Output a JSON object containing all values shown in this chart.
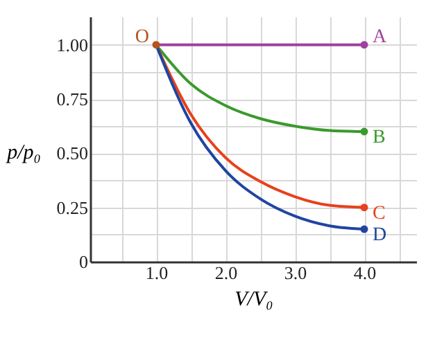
{
  "chart_data": {
    "type": "line",
    "xlabel": "V/V₀",
    "ylabel": "p/p₀",
    "xlim": [
      0.05,
      4.75
    ],
    "ylim": [
      0,
      1.13
    ],
    "xticks": [
      {
        "value": 0.5,
        "label": null
      },
      {
        "value": 1,
        "label": "1.0"
      },
      {
        "value": 1.5,
        "label": null
      },
      {
        "value": 2,
        "label": "2.0"
      },
      {
        "value": 2.5,
        "label": null
      },
      {
        "value": 3,
        "label": "3.0"
      },
      {
        "value": 3.5,
        "label": null
      },
      {
        "value": 4,
        "label": "4.0"
      },
      {
        "value": 4.5,
        "label": null
      }
    ],
    "yticks": [
      {
        "value": 0,
        "label": "0"
      },
      {
        "value": 0.125,
        "label": null
      },
      {
        "value": 0.25,
        "label": "0.25"
      },
      {
        "value": 0.375,
        "label": null
      },
      {
        "value": 0.5,
        "label": "0.50"
      },
      {
        "value": 0.625,
        "label": null
      },
      {
        "value": 0.75,
        "label": "0.75"
      },
      {
        "value": 0.875,
        "label": null
      },
      {
        "value": 1,
        "label": "1.00"
      }
    ],
    "grid": true,
    "legend": false,
    "line_style": "solid",
    "series": [
      {
        "name": "A",
        "color": "#a0409f",
        "x": [
          1,
          4
        ],
        "values": [
          1,
          1
        ]
      },
      {
        "name": "B",
        "color": "#3a9a2c",
        "x": [
          1,
          1.5,
          2,
          2.5,
          3,
          3.5,
          4
        ],
        "values": [
          1,
          0.82,
          0.72,
          0.66,
          0.625,
          0.605,
          0.6
        ]
      },
      {
        "name": "C",
        "color": "#e8401c",
        "x": [
          1,
          1.5,
          2,
          2.5,
          3,
          3.5,
          4
        ],
        "values": [
          1,
          0.68,
          0.48,
          0.37,
          0.3,
          0.26,
          0.25
        ]
      },
      {
        "name": "D",
        "color": "#1f45a0",
        "x": [
          1,
          1.5,
          2,
          2.5,
          3,
          3.5,
          4
        ],
        "values": [
          1,
          0.64,
          0.42,
          0.29,
          0.21,
          0.165,
          0.15
        ]
      },
      {
        "type": "scatter",
        "marker": "circle",
        "x": [
          4,
          4,
          4,
          4
        ],
        "values": [
          1,
          0.6,
          0.25,
          0.15
        ],
        "colors": [
          "#a0409f",
          "#3a9a2c",
          "#e8401c",
          "#1f45a0"
        ]
      },
      {
        "type": "scatter",
        "marker": "circle",
        "name": "O",
        "color": "#b5531f",
        "x": [
          1
        ],
        "values": [
          1
        ]
      }
    ]
  }
}
